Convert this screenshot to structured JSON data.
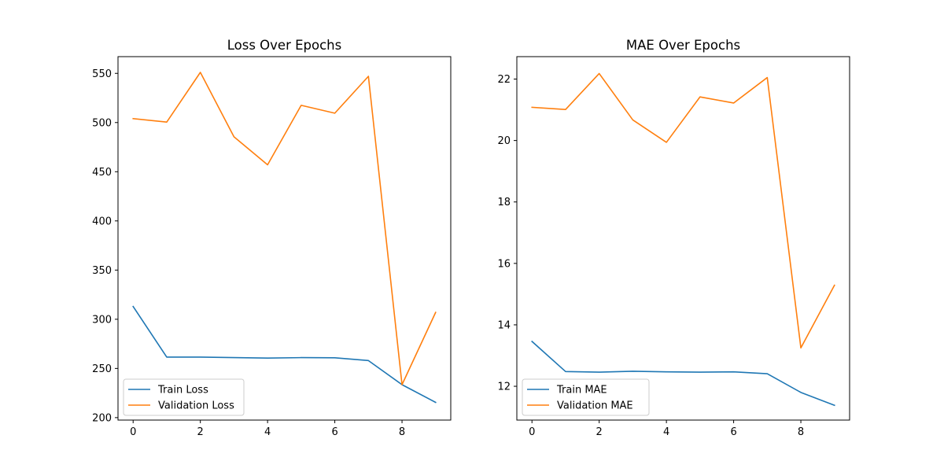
{
  "chart_data": [
    {
      "type": "line",
      "title": "Loss Over Epochs",
      "xlabel": "",
      "ylabel": "",
      "x": [
        0,
        1,
        2,
        3,
        4,
        5,
        6,
        7,
        8,
        9
      ],
      "xlim": [
        -0.45,
        9.45
      ],
      "ylim": [
        197.5,
        567
      ],
      "xticks": [
        0,
        2,
        4,
        6,
        8
      ],
      "yticks": [
        200,
        250,
        300,
        350,
        400,
        450,
        500,
        550
      ],
      "grid": false,
      "legend": "lower-left",
      "series": [
        {
          "name": "Train Loss",
          "color": "#1f77b4",
          "values": [
            313,
            261.5,
            261.5,
            261,
            260.5,
            261,
            260.8,
            258,
            233.5,
            215.5
          ]
        },
        {
          "name": "Validation Loss",
          "color": "#ff7f0e",
          "values": [
            504,
            500.5,
            551,
            485.5,
            457,
            517.5,
            509.5,
            547,
            233.5,
            307
          ]
        }
      ]
    },
    {
      "type": "line",
      "title": "MAE Over Epochs",
      "xlabel": "",
      "ylabel": "",
      "x": [
        0,
        1,
        2,
        3,
        4,
        5,
        6,
        7,
        8,
        9
      ],
      "xlim": [
        -0.45,
        9.45
      ],
      "ylim": [
        10.9,
        22.73
      ],
      "xticks": [
        0,
        2,
        4,
        6,
        8
      ],
      "yticks": [
        12,
        14,
        16,
        18,
        20,
        22
      ],
      "grid": false,
      "legend": "lower-left",
      "series": [
        {
          "name": "Train MAE",
          "color": "#1f77b4",
          "values": [
            13.46,
            12.48,
            12.46,
            12.49,
            12.47,
            12.46,
            12.47,
            12.41,
            11.8,
            11.38
          ]
        },
        {
          "name": "Validation MAE",
          "color": "#ff7f0e",
          "values": [
            21.08,
            21.01,
            22.18,
            20.67,
            19.94,
            21.42,
            21.22,
            22.05,
            13.25,
            15.29
          ]
        }
      ]
    }
  ]
}
